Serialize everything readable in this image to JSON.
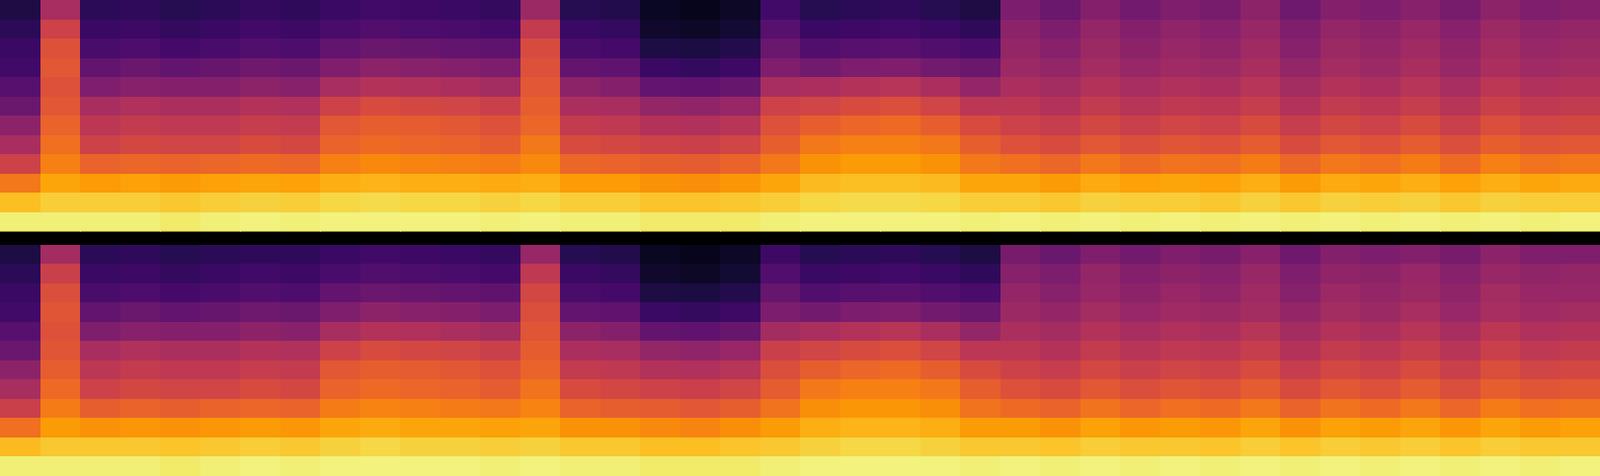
{
  "chart_data": [
    {
      "type": "heatmap",
      "color": "inferno",
      "tick_labels": false,
      "zlim": [
        0,
        100
      ],
      "cells": [
        [
          12,
          45,
          15,
          16,
          14,
          15,
          17,
          16,
          18,
          20,
          19,
          18,
          17,
          42,
          14,
          13,
          6,
          5,
          7,
          20,
          14,
          15,
          16,
          14,
          12,
          34,
          30,
          36,
          32,
          35,
          33,
          38,
          31,
          36,
          34,
          37,
          33,
          38,
          35,
          36
        ],
        [
          15,
          55,
          18,
          19,
          17,
          18,
          20,
          19,
          22,
          24,
          23,
          22,
          21,
          52,
          18,
          17,
          8,
          7,
          9,
          25,
          18,
          19,
          20,
          18,
          16,
          38,
          34,
          40,
          36,
          39,
          37,
          41,
          35,
          40,
          38,
          41,
          37,
          42,
          39,
          40
        ],
        [
          18,
          60,
          22,
          23,
          21,
          22,
          24,
          23,
          28,
          30,
          29,
          28,
          27,
          58,
          22,
          21,
          12,
          11,
          13,
          30,
          24,
          25,
          26,
          24,
          22,
          40,
          37,
          42,
          38,
          41,
          39,
          43,
          37,
          42,
          40,
          43,
          39,
          44,
          41,
          42
        ],
        [
          20,
          62,
          28,
          30,
          28,
          29,
          31,
          30,
          35,
          38,
          37,
          36,
          34,
          60,
          28,
          27,
          18,
          17,
          19,
          35,
          32,
          34,
          35,
          32,
          30,
          42,
          40,
          44,
          41,
          43,
          42,
          45,
          40,
          44,
          42,
          45,
          41,
          46,
          43,
          44
        ],
        [
          25,
          60,
          35,
          37,
          36,
          36,
          38,
          37,
          45,
          48,
          47,
          46,
          44,
          62,
          38,
          36,
          28,
          27,
          29,
          45,
          46,
          48,
          49,
          46,
          40,
          46,
          44,
          48,
          45,
          47,
          46,
          49,
          44,
          48,
          46,
          49,
          45,
          50,
          47,
          48
        ],
        [
          30,
          62,
          45,
          47,
          46,
          46,
          48,
          47,
          55,
          58,
          57,
          56,
          54,
          64,
          46,
          45,
          40,
          39,
          41,
          55,
          56,
          58,
          59,
          56,
          50,
          50,
          48,
          52,
          49,
          51,
          50,
          53,
          48,
          52,
          50,
          53,
          49,
          54,
          51,
          52
        ],
        [
          38,
          65,
          50,
          52,
          51,
          51,
          53,
          52,
          62,
          64,
          63,
          62,
          60,
          66,
          52,
          51,
          48,
          47,
          49,
          60,
          64,
          66,
          67,
          64,
          58,
          55,
          53,
          57,
          54,
          56,
          55,
          58,
          53,
          57,
          55,
          58,
          54,
          59,
          56,
          57
        ],
        [
          45,
          68,
          55,
          57,
          56,
          56,
          58,
          57,
          65,
          67,
          66,
          65,
          63,
          70,
          58,
          57,
          55,
          54,
          56,
          64,
          70,
          72,
          72,
          70,
          64,
          60,
          58,
          62,
          59,
          61,
          60,
          63,
          58,
          62,
          60,
          63,
          59,
          64,
          61,
          62
        ],
        [
          55,
          72,
          65,
          66,
          65,
          66,
          67,
          66,
          72,
          74,
          73,
          72,
          71,
          74,
          66,
          65,
          64,
          63,
          65,
          70,
          76,
          78,
          78,
          76,
          70,
          68,
          66,
          70,
          67,
          69,
          68,
          71,
          66,
          70,
          68,
          71,
          67,
          72,
          69,
          70
        ],
        [
          70,
          80,
          78,
          79,
          78,
          79,
          80,
          79,
          82,
          83,
          82,
          82,
          81,
          82,
          78,
          78,
          76,
          75,
          77,
          80,
          84,
          85,
          85,
          84,
          80,
          80,
          78,
          81,
          79,
          80,
          79,
          82,
          78,
          81,
          80,
          82,
          79,
          82,
          80,
          81
        ],
        [
          85,
          88,
          88,
          88,
          87,
          88,
          89,
          88,
          90,
          91,
          90,
          90,
          89,
          90,
          88,
          88,
          86,
          86,
          87,
          88,
          90,
          91,
          91,
          90,
          88,
          88,
          87,
          89,
          88,
          88,
          87,
          89,
          87,
          89,
          88,
          89,
          87,
          89,
          88,
          88
        ],
        [
          95,
          95,
          95,
          95,
          94,
          95,
          96,
          95,
          96,
          96,
          96,
          96,
          95,
          96,
          95,
          95,
          94,
          94,
          94,
          95,
          96,
          96,
          96,
          96,
          95,
          96,
          95,
          96,
          95,
          96,
          95,
          96,
          95,
          96,
          95,
          96,
          95,
          96,
          95,
          96
        ]
      ]
    },
    {
      "type": "heatmap",
      "color": "inferno",
      "tick_labels": false,
      "zlim": [
        0,
        100
      ],
      "cells": [
        [
          12,
          44,
          15,
          16,
          14,
          15,
          16,
          16,
          18,
          20,
          19,
          18,
          17,
          41,
          14,
          13,
          6,
          5,
          7,
          19,
          14,
          15,
          16,
          14,
          12,
          33,
          30,
          35,
          32,
          35,
          33,
          37,
          31,
          36,
          34,
          36,
          33,
          38,
          35,
          35
        ],
        [
          15,
          54,
          18,
          19,
          17,
          18,
          20,
          19,
          22,
          24,
          23,
          22,
          21,
          51,
          18,
          17,
          8,
          7,
          9,
          24,
          18,
          19,
          20,
          18,
          16,
          37,
          34,
          40,
          36,
          38,
          37,
          41,
          35,
          39,
          38,
          41,
          37,
          41,
          39,
          40
        ],
        [
          18,
          59,
          22,
          23,
          21,
          22,
          24,
          23,
          28,
          30,
          29,
          28,
          27,
          57,
          22,
          21,
          12,
          11,
          13,
          29,
          24,
          25,
          26,
          24,
          22,
          40,
          37,
          41,
          38,
          41,
          39,
          43,
          37,
          42,
          40,
          42,
          39,
          44,
          41,
          41
        ],
        [
          20,
          61,
          28,
          30,
          28,
          29,
          31,
          30,
          35,
          38,
          37,
          36,
          34,
          59,
          28,
          27,
          18,
          17,
          19,
          34,
          32,
          34,
          35,
          32,
          30,
          42,
          40,
          44,
          41,
          43,
          42,
          44,
          40,
          44,
          42,
          45,
          41,
          45,
          43,
          44
        ],
        [
          25,
          60,
          35,
          37,
          36,
          36,
          38,
          37,
          45,
          48,
          47,
          46,
          44,
          61,
          38,
          36,
          28,
          27,
          29,
          44,
          46,
          48,
          49,
          46,
          40,
          46,
          44,
          48,
          45,
          47,
          46,
          49,
          44,
          48,
          46,
          49,
          45,
          50,
          47,
          48
        ],
        [
          30,
          61,
          45,
          47,
          46,
          46,
          48,
          47,
          55,
          58,
          57,
          56,
          54,
          63,
          46,
          45,
          40,
          39,
          41,
          54,
          56,
          58,
          59,
          56,
          50,
          50,
          48,
          52,
          49,
          51,
          50,
          53,
          48,
          52,
          50,
          53,
          49,
          54,
          51,
          52
        ],
        [
          38,
          64,
          50,
          52,
          51,
          51,
          53,
          52,
          62,
          64,
          63,
          62,
          60,
          65,
          52,
          51,
          48,
          47,
          49,
          59,
          64,
          66,
          67,
          64,
          58,
          55,
          53,
          57,
          54,
          56,
          55,
          58,
          53,
          57,
          55,
          58,
          54,
          59,
          56,
          57
        ],
        [
          45,
          67,
          55,
          57,
          56,
          56,
          58,
          57,
          65,
          67,
          66,
          65,
          63,
          69,
          58,
          57,
          55,
          54,
          56,
          63,
          70,
          72,
          72,
          70,
          64,
          60,
          58,
          62,
          59,
          61,
          60,
          63,
          58,
          62,
          60,
          63,
          59,
          64,
          61,
          62
        ],
        [
          54,
          71,
          64,
          65,
          64,
          65,
          66,
          65,
          71,
          73,
          72,
          71,
          70,
          73,
          65,
          64,
          63,
          62,
          64,
          69,
          75,
          77,
          77,
          75,
          69,
          67,
          65,
          69,
          66,
          68,
          67,
          70,
          65,
          69,
          67,
          70,
          66,
          71,
          68,
          69
        ],
        [
          68,
          78,
          76,
          77,
          76,
          77,
          78,
          77,
          80,
          81,
          80,
          80,
          79,
          80,
          76,
          76,
          74,
          73,
          75,
          78,
          82,
          83,
          83,
          82,
          78,
          78,
          76,
          79,
          77,
          78,
          77,
          80,
          76,
          79,
          78,
          80,
          77,
          80,
          78,
          79
        ],
        [
          84,
          87,
          87,
          87,
          86,
          87,
          88,
          87,
          89,
          90,
          89,
          89,
          88,
          89,
          87,
          87,
          85,
          85,
          86,
          87,
          89,
          90,
          90,
          89,
          87,
          87,
          86,
          88,
          87,
          87,
          86,
          88,
          86,
          88,
          87,
          88,
          86,
          88,
          87,
          87
        ],
        [
          95,
          95,
          95,
          95,
          94,
          95,
          96,
          95,
          96,
          96,
          96,
          96,
          95,
          96,
          95,
          95,
          94,
          94,
          94,
          95,
          96,
          96,
          96,
          96,
          95,
          96,
          95,
          96,
          95,
          96,
          95,
          96,
          95,
          96,
          95,
          96,
          95,
          96,
          95,
          96
        ]
      ]
    }
  ]
}
